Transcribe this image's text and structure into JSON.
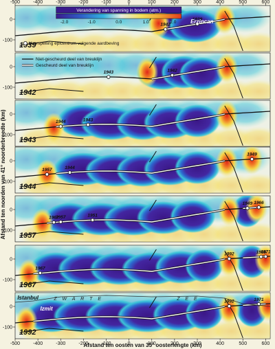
{
  "colorbar": {
    "title": "Verandering van spanning in bodem (atm.)",
    "ticks": [
      "-2.0",
      "-1.0",
      "0.0",
      "1.0",
      "2.0"
    ],
    "colors": [
      "#3a1a8c",
      "#2f5fc8",
      "#34b4e0",
      "#e6ede0",
      "#f2e05a",
      "#f0a030",
      "#e03a1e"
    ]
  },
  "axes": {
    "x_title": "Afstand ten oosten van 35° oosterlengte (km)",
    "y_title": "Afstand ten noorden van 41° noorderbreedte (km)",
    "x_ticks": [
      "-500",
      "-400",
      "-300",
      "-200",
      "-100",
      "0",
      "100",
      "200",
      "300",
      "400",
      "500",
      "600"
    ],
    "y_ticks": [
      "0",
      "-100"
    ]
  },
  "legend": {
    "epicenter": "Voorspelling epicentrum volgende aardbeving",
    "unbroken": "Niet-gescheurd deel van breuklijn",
    "broken": "Gescheurd deel van breuklijn"
  },
  "places": {
    "erzincan": "Erzincan",
    "istanbul": "Istanbul",
    "izmit": "Izmit",
    "sea_a": "Z W A R T E",
    "sea_b": "Z E E"
  },
  "panels": [
    {
      "year": "1939",
      "quakes": [
        {
          "label": "1942",
          "x": 160
        },
        {
          "label": "1939",
          "x": 300
        }
      ]
    },
    {
      "year": "1942",
      "quakes": [
        {
          "label": "1943",
          "x": -90
        },
        {
          "label": "1942",
          "x": 190
        }
      ]
    },
    {
      "year": "1943",
      "quakes": [
        {
          "label": "1944",
          "x": -300
        },
        {
          "label": "1943",
          "x": -180
        }
      ]
    },
    {
      "year": "1944",
      "quakes": [
        {
          "label": "1944",
          "x": -260
        },
        {
          "label": "1957",
          "x": -360
        },
        {
          "label": "1949",
          "x": 540
        }
      ]
    },
    {
      "year": "1957",
      "quakes": [
        {
          "label": "1967",
          "x": -330
        },
        {
          "label": "1957",
          "x": -300
        },
        {
          "label": "1951",
          "x": -160
        },
        {
          "label": "1949",
          "x": 520
        },
        {
          "label": "1966",
          "x": 570
        }
      ]
    },
    {
      "year": "1967",
      "quakes": [
        {
          "label": "1967",
          "x": -390
        },
        {
          "label": "1992",
          "x": 440
        },
        {
          "label": "1966",
          "x": 580
        },
        {
          "label": "1971",
          "x": 600
        }
      ]
    },
    {
      "year": "1992",
      "quakes": [
        {
          "label": "1992",
          "x": 440
        },
        {
          "label": "1971",
          "x": 570
        }
      ]
    }
  ]
}
